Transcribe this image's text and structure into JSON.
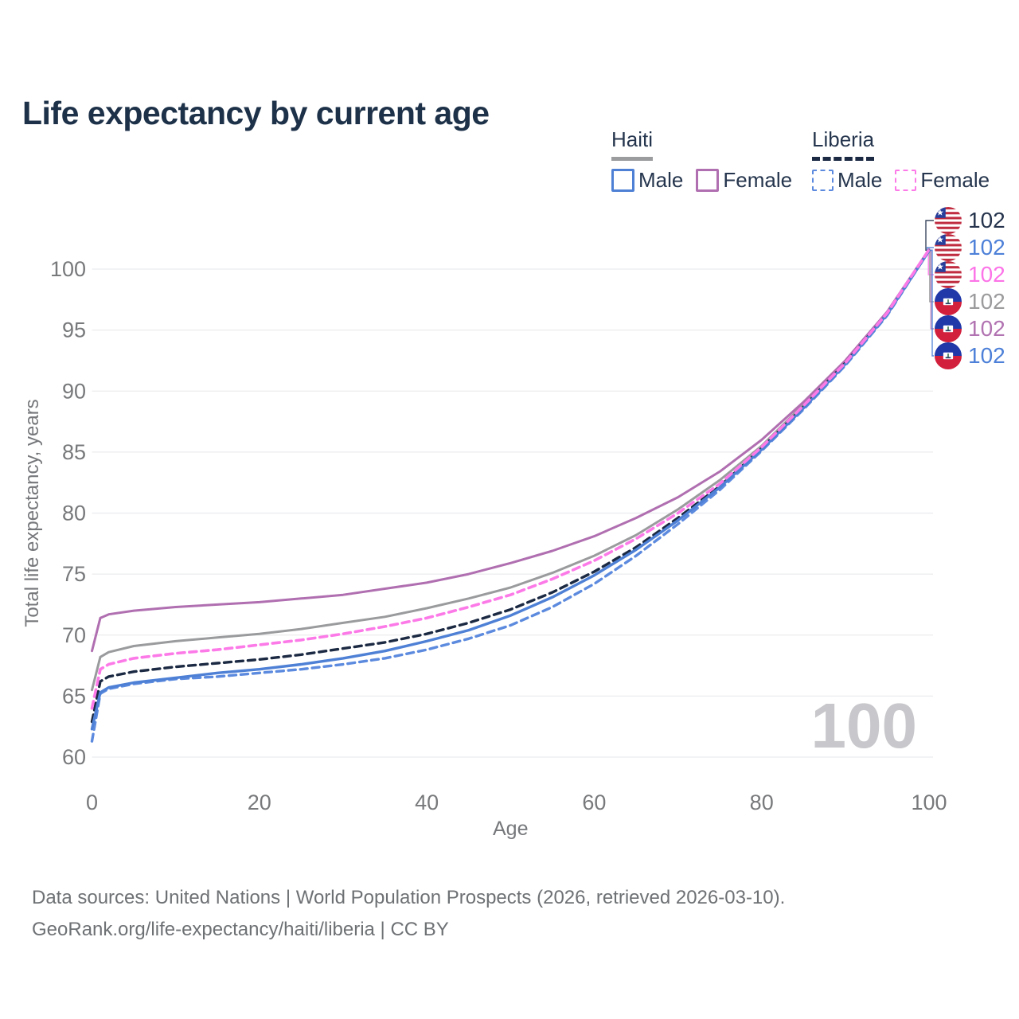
{
  "title": "Life expectancy by current age",
  "watermark": "100",
  "legend": {
    "groups": [
      {
        "name": "Haiti",
        "style": "solid",
        "items": [
          {
            "label": "Male",
            "series": "haiti_male"
          },
          {
            "label": "Female",
            "series": "haiti_female"
          }
        ]
      },
      {
        "name": "Liberia",
        "style": "dashed",
        "items": [
          {
            "label": "Male",
            "series": "liberia_male"
          },
          {
            "label": "Female",
            "series": "liberia_female"
          }
        ]
      }
    ]
  },
  "end_labels": [
    {
      "flag": "liberia",
      "text": "102",
      "color": "#25334c",
      "series": "liberia_all"
    },
    {
      "flag": "liberia",
      "text": "102",
      "color": "#4d80d8",
      "series": "liberia_male"
    },
    {
      "flag": "liberia",
      "text": "102",
      "color": "#fc74e8",
      "series": "liberia_female"
    },
    {
      "flag": "haiti",
      "text": "102",
      "color": "#9b9b9d",
      "series": "haiti_all"
    },
    {
      "flag": "haiti",
      "text": "102",
      "color": "#b173b1",
      "series": "haiti_female"
    },
    {
      "flag": "haiti",
      "text": "102",
      "color": "#4d80d8",
      "series": "haiti_male"
    }
  ],
  "footer": {
    "line1": "Data sources: United Nations | World Population Prospects (2026, retrieved 2026-03-10).",
    "line2": "GeoRank.org/life-expectancy/haiti/liberia | CC BY"
  },
  "colors": {
    "title": "#1d3148",
    "tick": "#77797b",
    "axis_label": "#75777a",
    "grid": "#ebecee",
    "footer": "#6e7174",
    "watermark": "#c8c8cc",
    "legend_text": "#25354d",
    "haiti_underline": "#9b9c9e",
    "liberia_underline": "#1b2942"
  },
  "chart_data": {
    "type": "line",
    "title": "Life expectancy by current age",
    "xlabel": "Age",
    "ylabel": "Total life expectancy, years",
    "xlim": [
      0,
      100
    ],
    "ylim": [
      60,
      104.5
    ],
    "x_ticks": [
      0,
      20,
      40,
      60,
      80,
      100
    ],
    "y_ticks": [
      60,
      65,
      70,
      75,
      80,
      85,
      90,
      95,
      100
    ],
    "grid": "horizontal",
    "legend_position": "top-right",
    "x": [
      0,
      1,
      2,
      5,
      10,
      15,
      20,
      25,
      30,
      35,
      40,
      45,
      50,
      55,
      60,
      65,
      70,
      75,
      80,
      85,
      90,
      95,
      100
    ],
    "series": [
      {
        "id": "haiti_all",
        "name": "Haiti",
        "country": "Haiti",
        "sex": "Total",
        "color": "#9a9b9d",
        "dash": null,
        "width": 3,
        "values": [
          65.5,
          68.2,
          68.6,
          69.1,
          69.5,
          69.8,
          70.1,
          70.5,
          71.0,
          71.5,
          72.2,
          73.0,
          73.9,
          75.1,
          76.5,
          78.2,
          80.3,
          82.7,
          85.5,
          88.9,
          92.4,
          96.4,
          101.6
        ]
      },
      {
        "id": "haiti_female",
        "name": "Haiti Female",
        "country": "Haiti",
        "sex": "Female",
        "color": "#b06fb0",
        "dash": null,
        "width": 3,
        "values": [
          68.7,
          71.4,
          71.7,
          72.0,
          72.3,
          72.5,
          72.7,
          73.0,
          73.3,
          73.8,
          74.3,
          75.0,
          75.9,
          76.9,
          78.1,
          79.6,
          81.3,
          83.4,
          86.0,
          89.1,
          92.5,
          96.5,
          101.6
        ]
      },
      {
        "id": "liberia_all",
        "name": "Liberia",
        "country": "Liberia",
        "sex": "Total",
        "color": "#1b2942",
        "dash": "9 6",
        "width": 3.4,
        "values": [
          62.9,
          66.2,
          66.6,
          67.0,
          67.4,
          67.7,
          68.0,
          68.4,
          68.9,
          69.4,
          70.1,
          71.0,
          72.1,
          73.5,
          75.2,
          77.2,
          79.6,
          82.2,
          85.3,
          88.7,
          92.3,
          96.3,
          101.5
        ]
      },
      {
        "id": "liberia_male",
        "name": "Liberia Male",
        "country": "Liberia",
        "sex": "Male",
        "color": "#5c8ade",
        "dash": "9 6",
        "width": 3.4,
        "values": [
          61.3,
          65.2,
          65.6,
          66.0,
          66.4,
          66.6,
          66.9,
          67.2,
          67.6,
          68.1,
          68.8,
          69.7,
          70.8,
          72.3,
          74.2,
          76.5,
          79.1,
          81.9,
          85.1,
          88.5,
          92.1,
          96.2,
          101.5
        ]
      },
      {
        "id": "haiti_male",
        "name": "Haiti Male",
        "country": "Haiti",
        "sex": "Male",
        "color": "#4e80d5",
        "dash": null,
        "width": 3.4,
        "values": [
          62.3,
          65.3,
          65.7,
          66.1,
          66.5,
          66.9,
          67.2,
          67.6,
          68.1,
          68.7,
          69.5,
          70.4,
          71.6,
          73.1,
          74.9,
          77.0,
          79.4,
          82.1,
          85.2,
          88.6,
          92.2,
          96.3,
          101.5
        ]
      },
      {
        "id": "liberia_female",
        "name": "Liberia Female",
        "country": "Liberia",
        "sex": "Female",
        "color": "#fc7ae8",
        "dash": "9 6",
        "width": 3.6,
        "values": [
          64.0,
          67.2,
          67.6,
          68.1,
          68.5,
          68.8,
          69.2,
          69.6,
          70.1,
          70.7,
          71.4,
          72.3,
          73.3,
          74.6,
          76.1,
          77.9,
          80.0,
          82.4,
          85.4,
          88.8,
          92.3,
          96.4,
          101.6
        ]
      }
    ]
  }
}
